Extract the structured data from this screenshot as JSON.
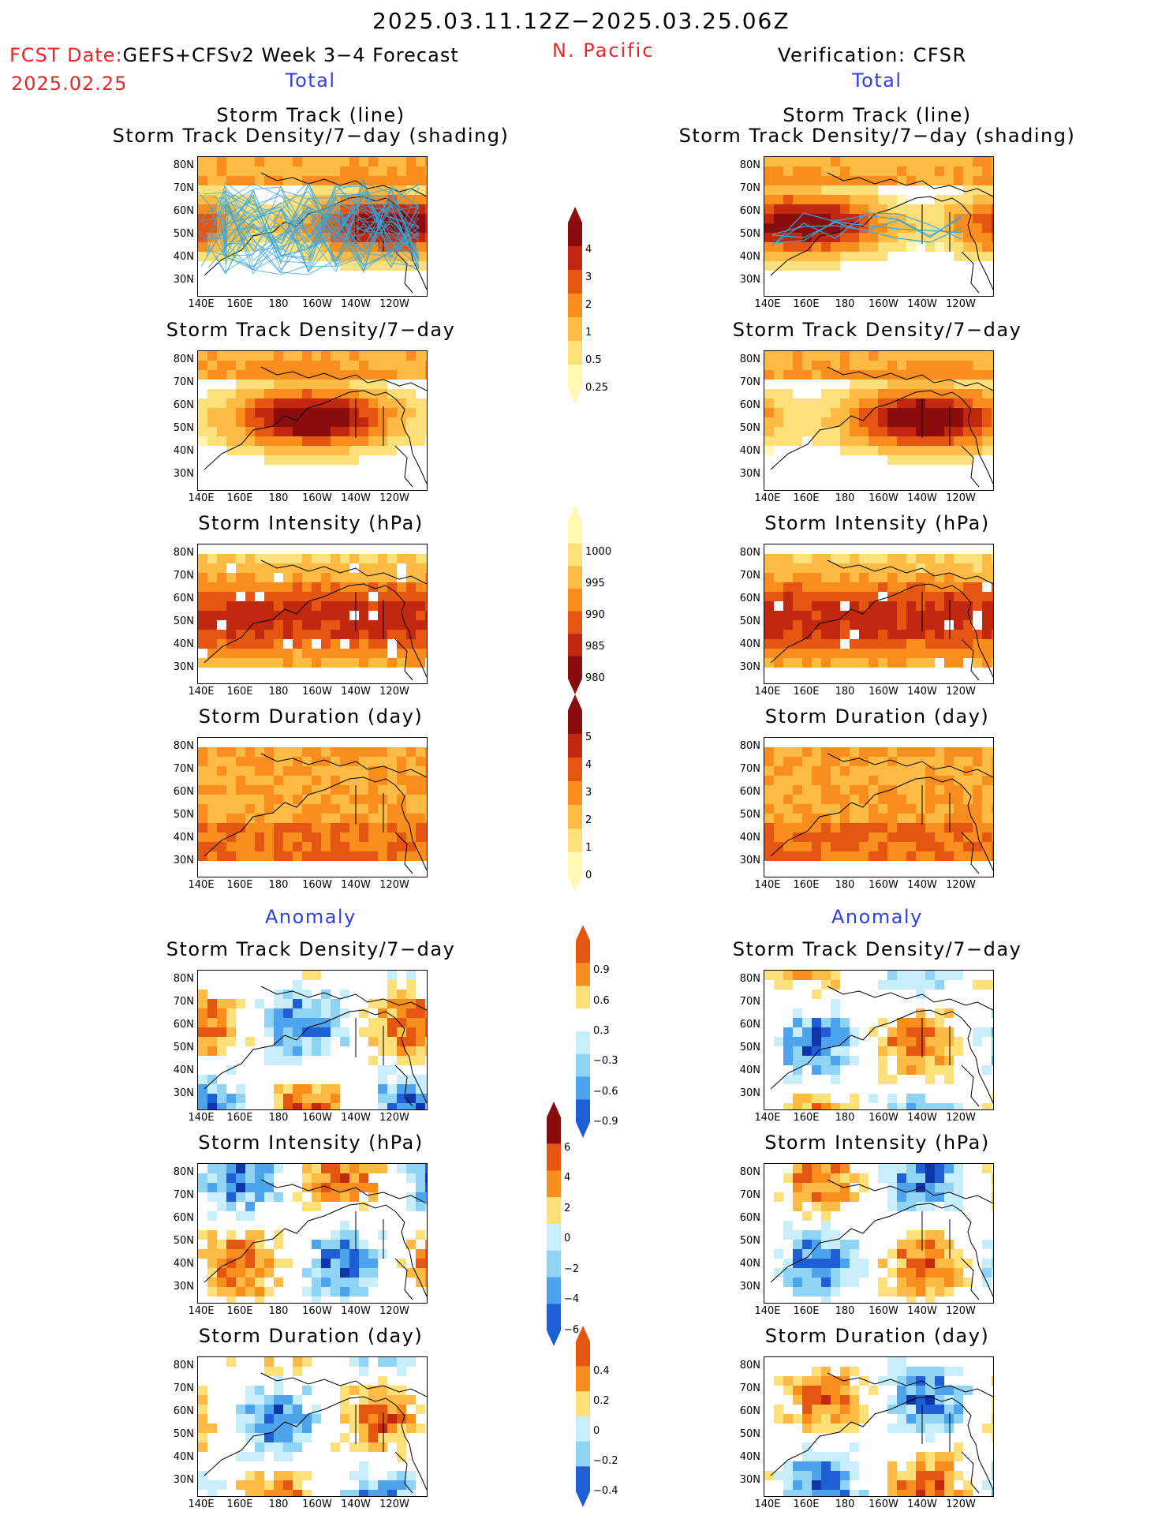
{
  "header": {
    "period": "2025.03.11.12Z−2025.03.25.06Z",
    "region": "N. Pacific",
    "fcst_label": "FCST Date:",
    "fcst_model": "GEFS+CFSv2 Week 3−4 Forecast",
    "fcst_date": "2025.02.25",
    "verification": "Verification: CFSR"
  },
  "sections": {
    "total": "Total",
    "anomaly": "Anomaly"
  },
  "panel_titles": {
    "track_line": "Storm Track (line)",
    "track_shading": "Storm Track Density/7−day (shading)",
    "density": "Storm Track Density/7−day",
    "intensity": "Storm Intensity (hPa)",
    "duration": "Storm Duration (day)"
  },
  "axes": {
    "lat_labels": [
      "80N",
      "70N",
      "60N",
      "50N",
      "40N",
      "30N"
    ],
    "lon_labels": [
      "140E",
      "160E",
      "180",
      "160W",
      "140W",
      "120W"
    ]
  },
  "colorbars": {
    "density_total": {
      "labels": [
        "4",
        "3",
        "2",
        "1",
        "0.5",
        "0.25"
      ]
    },
    "intensity_total": {
      "labels": [
        "1000",
        "995",
        "990",
        "985",
        "980"
      ]
    },
    "duration_total": {
      "labels": [
        "5",
        "4",
        "3",
        "2",
        "1",
        "0"
      ]
    },
    "density_anom": {
      "labels": [
        "0.9",
        "0.6",
        "0.3",
        "−0.3",
        "−0.6",
        "−0.9"
      ]
    },
    "intensity_anom": {
      "labels": [
        "6",
        "4",
        "2",
        "0",
        "−2",
        "−4",
        "−6"
      ]
    },
    "duration_anom": {
      "labels": [
        "0.4",
        "0.2",
        "0",
        "−0.2",
        "−0.4"
      ]
    }
  },
  "colors": {
    "warm": [
      "#fff7b3",
      "#fde07a",
      "#fdbb45",
      "#f98e1f",
      "#e65613",
      "#c0280f",
      "#8a0c0c"
    ],
    "cool": [
      "#c8eefb",
      "#8fd3f5",
      "#4da3ec",
      "#1f5fd6",
      "#0e36a8"
    ],
    "track_line": "#3aa6dc",
    "title_red": "#e8262a",
    "title_blue": "#2f3fe8"
  }
}
